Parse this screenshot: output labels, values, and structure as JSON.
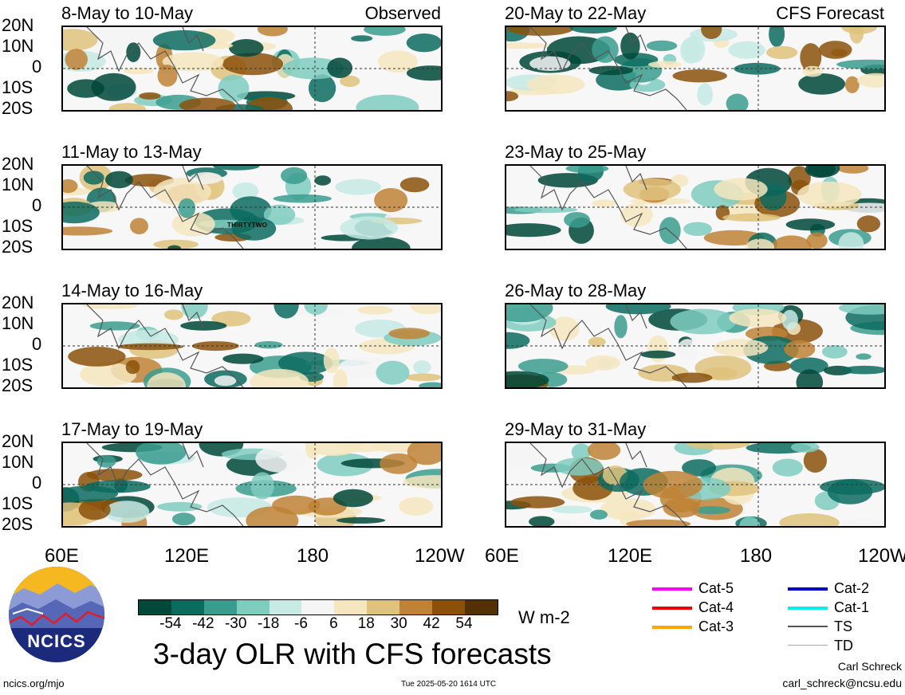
{
  "panels_left": [
    {
      "title": "8-May to 10-May",
      "label": "Observed"
    },
    {
      "title": "11-May to 13-May",
      "label": ""
    },
    {
      "title": "14-May to 16-May",
      "label": ""
    },
    {
      "title": "17-May to 19-May",
      "label": ""
    }
  ],
  "panels_right": [
    {
      "title": "20-May to 22-May",
      "label": "CFS Forecast"
    },
    {
      "title": "23-May to 25-May",
      "label": ""
    },
    {
      "title": "26-May to 28-May",
      "label": ""
    },
    {
      "title": "29-May to 31-May",
      "label": ""
    }
  ],
  "lat_labels": [
    "20N",
    "10N",
    "0",
    "10S",
    "20S"
  ],
  "lon_labels_left": [
    "60E",
    "120E",
    "180",
    "120W"
  ],
  "lon_labels_right": [
    "60E",
    "120E",
    "180",
    "120W"
  ],
  "storm_label": "THIRTYTWO",
  "colorbar": {
    "colors": [
      "#00483a",
      "#0c6b5f",
      "#3a9c8e",
      "#7fcdbf",
      "#c7eae4",
      "#f5f5f5",
      "#f5e6be",
      "#dfc27d",
      "#c08236",
      "#8b510a",
      "#543005"
    ],
    "ticks": [
      "-54",
      "-42",
      "-30",
      "-18",
      "-6",
      "6",
      "18",
      "30",
      "42",
      "54"
    ],
    "units": "W m-2"
  },
  "main_title": "3-day OLR with CFS forecasts",
  "logo_text": "NCICS",
  "legend": [
    {
      "label": "Cat-5",
      "color": "#ff00ff"
    },
    {
      "label": "Cat-4",
      "color": "#ee0000"
    },
    {
      "label": "Cat-3",
      "color": "#ffa500"
    },
    {
      "label": "Cat-2",
      "color": "#0000cc"
    },
    {
      "label": "Cat-1",
      "color": "#00eeee"
    },
    {
      "label": "TS",
      "color": "#555555"
    },
    {
      "label": "TD",
      "color": "#aaaaaa"
    }
  ],
  "footer_left": "ncics.org/mjo",
  "footer_center": "Tue 2025-05-20 1614 UTC",
  "author_name": "Carl Schreck",
  "author_email": "carl_schreck@ncsu.edu"
}
